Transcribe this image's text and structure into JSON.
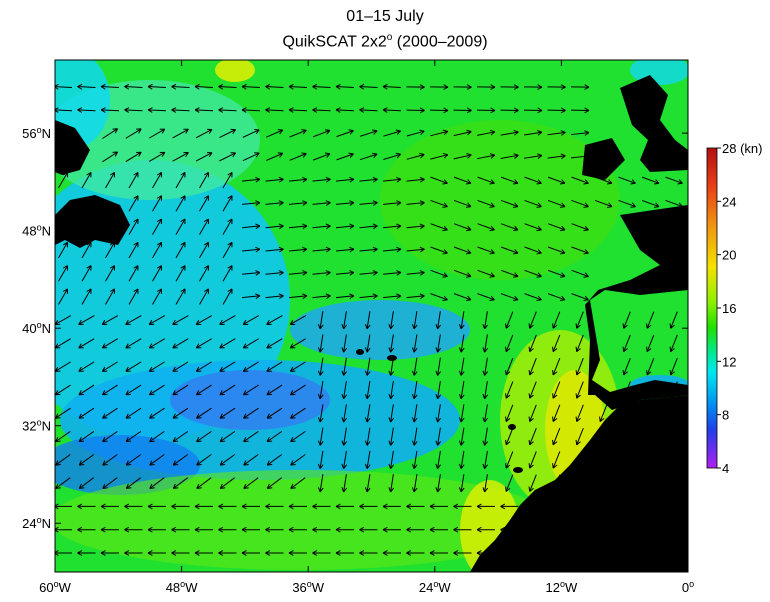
{
  "title": {
    "line1": "01–15 July",
    "line2_main": "QuikSCAT 2x2",
    "line2_sup": "o",
    "line2_rest": " (2000–2009)"
  },
  "map": {
    "lon_range": [
      -60,
      0
    ],
    "lat_range": [
      20,
      62
    ],
    "lat_ticks": [
      {
        "value": 56,
        "num": "56",
        "hemi": "N"
      },
      {
        "value": 48,
        "num": "48",
        "hemi": "N"
      },
      {
        "value": 40,
        "num": "40",
        "hemi": "N"
      },
      {
        "value": 32,
        "num": "32",
        "hemi": "N"
      },
      {
        "value": 24,
        "num": "24",
        "hemi": "N"
      }
    ],
    "lon_ticks": [
      {
        "value": -60,
        "num": "60",
        "hemi": "W"
      },
      {
        "value": -48,
        "num": "48",
        "hemi": "W"
      },
      {
        "value": -36,
        "num": "36",
        "hemi": "W"
      },
      {
        "value": -24,
        "num": "24",
        "hemi": "W"
      },
      {
        "value": -12,
        "num": "12",
        "hemi": "W"
      },
      {
        "value": 0,
        "num": "0",
        "hemi": ""
      }
    ],
    "land_color": "#000000",
    "vector_color": "#000000"
  },
  "colorbar": {
    "unit": "(kn)",
    "min": 4,
    "max": 28,
    "ticks": [
      "28",
      "24",
      "20",
      "16",
      "12",
      "8",
      "4"
    ],
    "colors": [
      "#c0101a",
      "#e8401a",
      "#f08a10",
      "#f5c800",
      "#f0f000",
      "#b0f000",
      "#30e000",
      "#00e870",
      "#00f0f0",
      "#00b0f0",
      "#2060f0",
      "#3030e0",
      "#9020e0",
      "#b030f0"
    ]
  }
}
